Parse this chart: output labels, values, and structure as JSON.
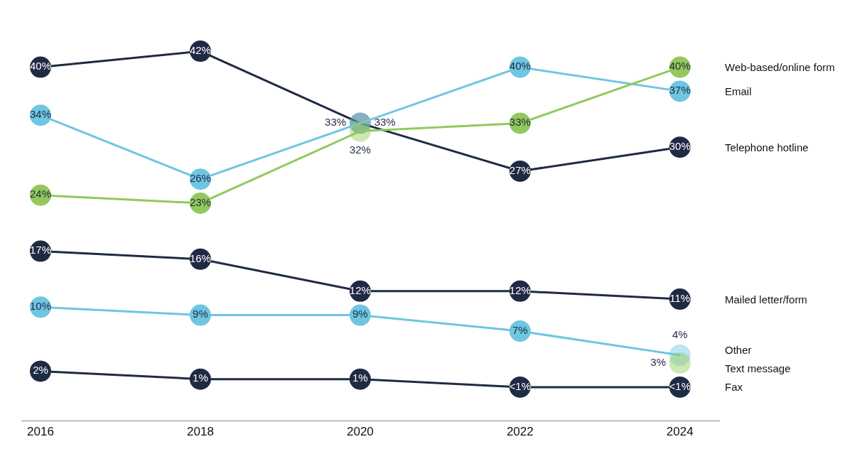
{
  "chart_data": {
    "type": "line",
    "categories": [
      "2016",
      "2018",
      "2020",
      "2022",
      "2024"
    ],
    "series": [
      {
        "name": "Telephone hotline",
        "color": "#1f2a44",
        "values": [
          40,
          42,
          33,
          27,
          30
        ],
        "value_labels": [
          "40%",
          "42%",
          "33%",
          "27%",
          "30%"
        ]
      },
      {
        "name": "Email",
        "color": "#6ec6e0",
        "values": [
          34,
          26,
          33,
          40,
          37
        ],
        "value_labels": [
          "34%",
          "26%",
          "33%",
          "40%",
          "37%"
        ]
      },
      {
        "name": "Web-based/online form",
        "color": "#92c95c",
        "values": [
          24,
          23,
          32,
          33,
          40
        ],
        "value_labels": [
          "24%",
          "23%",
          "32%",
          "33%",
          "40%"
        ]
      },
      {
        "name": "Mailed letter/form",
        "color": "#1f2a44",
        "values": [
          17,
          16,
          12,
          12,
          11
        ],
        "value_labels": [
          "17%",
          "16%",
          "12%",
          "12%",
          "11%"
        ]
      },
      {
        "name": "Other",
        "color": "#6ec6e0",
        "values": [
          10,
          9,
          9,
          7,
          4
        ],
        "value_labels": [
          "10%",
          "9%",
          "9%",
          "7%",
          "4%"
        ]
      },
      {
        "name": "Text message",
        "color": "#92c95c",
        "values": [
          null,
          null,
          null,
          null,
          3
        ],
        "value_labels": [
          null,
          null,
          null,
          null,
          "3%"
        ]
      },
      {
        "name": "Fax",
        "color": "#1f2a44",
        "values": [
          2,
          1,
          1,
          0,
          0
        ],
        "value_labels": [
          "2%",
          "1%",
          "1%",
          "<1%",
          "<1%"
        ]
      }
    ],
    "tick_labels": "x",
    "legend": false,
    "marker": "circle",
    "line_style": "solid"
  }
}
